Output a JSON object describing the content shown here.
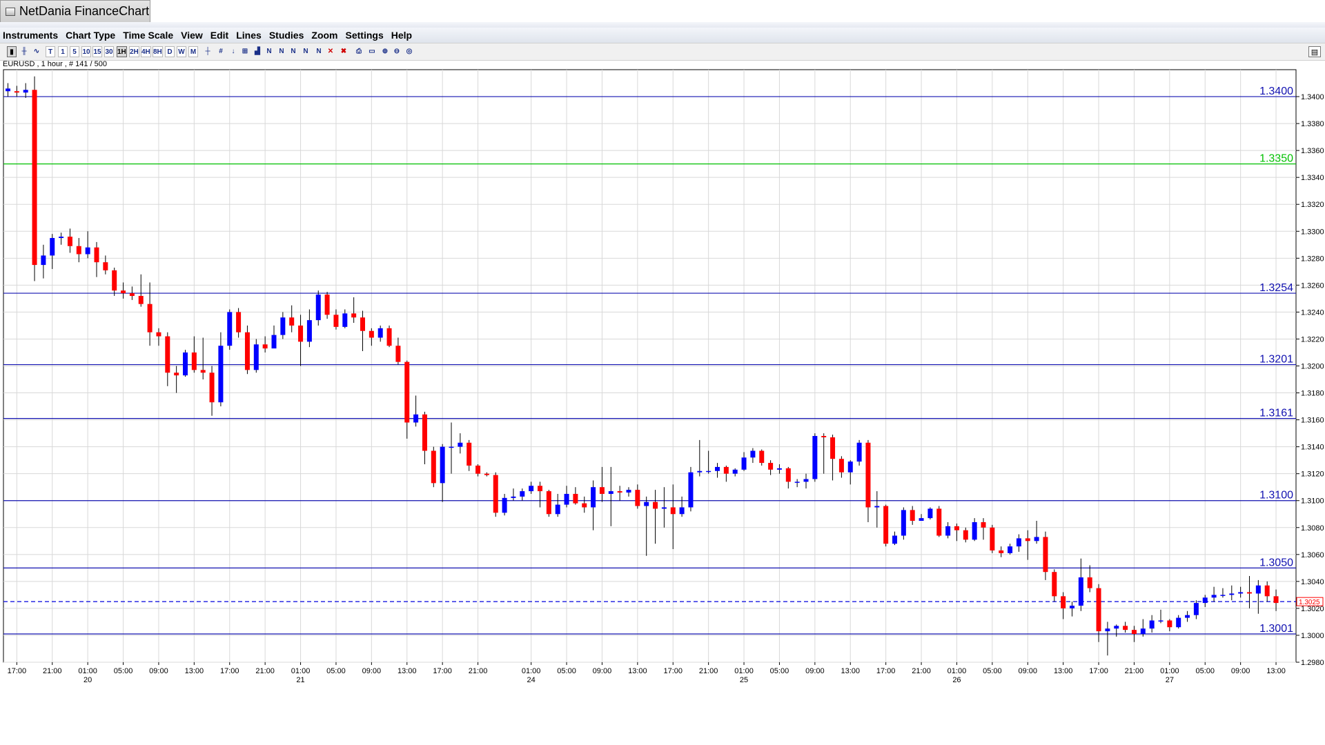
{
  "window": {
    "title": "NetDania FinanceChart"
  },
  "menu": [
    "Instruments",
    "Chart Type",
    "Time Scale",
    "View",
    "Edit",
    "Lines",
    "Studies",
    "Zoom",
    "Settings",
    "Help"
  ],
  "toolbar": {
    "buttons": [
      {
        "label": "",
        "icon": "candlestick-chart-icon",
        "active": true
      },
      {
        "label": "",
        "icon": "bar-chart-icon"
      },
      {
        "label": "",
        "icon": "line-chart-icon"
      },
      {
        "label": "T"
      },
      {
        "label": "1"
      },
      {
        "label": "5"
      },
      {
        "label": "10"
      },
      {
        "label": "15"
      },
      {
        "label": "30"
      },
      {
        "label": "1H",
        "active": true
      },
      {
        "label": "2H"
      },
      {
        "label": "4H"
      },
      {
        "label": "8H"
      },
      {
        "label": "D"
      },
      {
        "label": "W"
      },
      {
        "label": "M"
      },
      {
        "label": "",
        "icon": "crosshair-icon"
      },
      {
        "label": "",
        "icon": "grid-icon"
      },
      {
        "label": "",
        "icon": "price-cursor-icon"
      },
      {
        "label": "",
        "icon": "scale-icon"
      },
      {
        "label": "",
        "icon": "volume-icon"
      },
      {
        "label": "",
        "icon": "trendline-icon"
      },
      {
        "label": "",
        "icon": "parallel-lines-icon"
      },
      {
        "label": "",
        "icon": "fan-lines-icon"
      },
      {
        "label": "",
        "icon": "fibonacci-icon"
      },
      {
        "label": "",
        "icon": "edit-lines-icon"
      },
      {
        "label": "",
        "icon": "delete-line-icon"
      },
      {
        "label": "",
        "icon": "delete-all-lines-icon"
      },
      {
        "label": "",
        "icon": "print-icon"
      },
      {
        "label": "",
        "icon": "print-preview-icon"
      },
      {
        "label": "",
        "icon": "zoom-in-icon"
      },
      {
        "label": "",
        "icon": "zoom-out-icon"
      },
      {
        "label": "",
        "icon": "zoom-reset-icon"
      }
    ]
  },
  "chart_info": "EURUSD , 1 hour , # 141 / 500",
  "colors": {
    "up": "#0000ff",
    "down": "#ff0000",
    "wick": "#000000",
    "grid": "#d8d8d8",
    "level": "#1010b0",
    "green_level": "#00c000",
    "current": "#0000dd"
  },
  "chart_data": {
    "type": "candlestick",
    "symbol": "EURUSD",
    "timeframe": "1 hour",
    "ylim": [
      1.298,
      1.342
    ],
    "y_ticks": [
      "1.2980",
      "1.3000",
      "1.3020",
      "1.3040",
      "1.3060",
      "1.3080",
      "1.3100",
      "1.3120",
      "1.3140",
      "1.3160",
      "1.3180",
      "1.3200",
      "1.3220",
      "1.3240",
      "1.3260",
      "1.3280",
      "1.3300",
      "1.3320",
      "1.3340",
      "1.3360",
      "1.3380",
      "1.3400"
    ],
    "x_ticks": [
      {
        "slot": 1,
        "time": "17:00",
        "date": ""
      },
      {
        "slot": 5,
        "time": "21:00",
        "date": ""
      },
      {
        "slot": 9,
        "time": "01:00",
        "date": "20"
      },
      {
        "slot": 13,
        "time": "05:00",
        "date": ""
      },
      {
        "slot": 17,
        "time": "09:00",
        "date": ""
      },
      {
        "slot": 21,
        "time": "13:00",
        "date": ""
      },
      {
        "slot": 25,
        "time": "17:00",
        "date": ""
      },
      {
        "slot": 29,
        "time": "21:00",
        "date": ""
      },
      {
        "slot": 33,
        "time": "01:00",
        "date": "21"
      },
      {
        "slot": 37,
        "time": "05:00",
        "date": ""
      },
      {
        "slot": 41,
        "time": "09:00",
        "date": ""
      },
      {
        "slot": 45,
        "time": "13:00",
        "date": ""
      },
      {
        "slot": 49,
        "time": "17:00",
        "date": ""
      },
      {
        "slot": 53,
        "time": "21:00",
        "date": ""
      },
      {
        "slot": 59,
        "time": "01:00",
        "date": "24"
      },
      {
        "slot": 63,
        "time": "05:00",
        "date": ""
      },
      {
        "slot": 67,
        "time": "09:00",
        "date": ""
      },
      {
        "slot": 71,
        "time": "13:00",
        "date": ""
      },
      {
        "slot": 75,
        "time": "17:00",
        "date": ""
      },
      {
        "slot": 79,
        "time": "21:00",
        "date": ""
      },
      {
        "slot": 83,
        "time": "01:00",
        "date": "25"
      },
      {
        "slot": 87,
        "time": "05:00",
        "date": ""
      },
      {
        "slot": 91,
        "time": "09:00",
        "date": ""
      },
      {
        "slot": 95,
        "time": "13:00",
        "date": ""
      },
      {
        "slot": 99,
        "time": "17:00",
        "date": ""
      },
      {
        "slot": 103,
        "time": "21:00",
        "date": ""
      },
      {
        "slot": 107,
        "time": "01:00",
        "date": "26"
      },
      {
        "slot": 111,
        "time": "05:00",
        "date": ""
      },
      {
        "slot": 115,
        "time": "09:00",
        "date": ""
      },
      {
        "slot": 119,
        "time": "13:00",
        "date": ""
      },
      {
        "slot": 123,
        "time": "17:00",
        "date": ""
      },
      {
        "slot": 127,
        "time": "21:00",
        "date": ""
      },
      {
        "slot": 131,
        "time": "01:00",
        "date": "27"
      },
      {
        "slot": 135,
        "time": "05:00",
        "date": ""
      },
      {
        "slot": 139,
        "time": "09:00",
        "date": ""
      },
      {
        "slot": 143,
        "time": "13:00",
        "date": ""
      }
    ],
    "levels": [
      {
        "value": 1.34,
        "label": "1.3400",
        "color": "#1010b0"
      },
      {
        "value": 1.335,
        "label": "1.3350",
        "color": "#00c000"
      },
      {
        "value": 1.3254,
        "label": "1.3254",
        "color": "#1010b0"
      },
      {
        "value": 1.3201,
        "label": "1.3201",
        "color": "#1010b0"
      },
      {
        "value": 1.3161,
        "label": "1.3161",
        "color": "#1010b0"
      },
      {
        "value": 1.31,
        "label": "1.3100",
        "color": "#1010b0"
      },
      {
        "value": 1.305,
        "label": "1.3050",
        "color": "#1010b0"
      },
      {
        "value": 1.3001,
        "label": "1.3001",
        "color": "#1010b0"
      }
    ],
    "current_price": {
      "value": 1.3025,
      "label": "1.3025"
    },
    "candles": [
      [
        1.3404,
        1.3406,
        1.341,
        1.34
      ],
      [
        1.3404,
        1.3403,
        1.3408,
        1.34
      ],
      [
        1.3403,
        1.3405,
        1.341,
        1.3399
      ],
      [
        1.3405,
        1.3275,
        1.3415,
        1.3263
      ],
      [
        1.3275,
        1.3282,
        1.329,
        1.3265
      ],
      [
        1.3282,
        1.3295,
        1.3298,
        1.3272
      ],
      [
        1.3295,
        1.3296,
        1.3299,
        1.329
      ],
      [
        1.3296,
        1.3289,
        1.3302,
        1.3284
      ],
      [
        1.3289,
        1.3283,
        1.3295,
        1.3277
      ],
      [
        1.3283,
        1.3288,
        1.33,
        1.328
      ],
      [
        1.3288,
        1.3277,
        1.3292,
        1.3266
      ],
      [
        1.3277,
        1.3271,
        1.3282,
        1.3268
      ],
      [
        1.3271,
        1.3256,
        1.3273,
        1.3252
      ],
      [
        1.3256,
        1.3254,
        1.3262,
        1.325
      ],
      [
        1.3254,
        1.3252,
        1.3259,
        1.3249
      ],
      [
        1.3252,
        1.3246,
        1.3268,
        1.3244
      ],
      [
        1.3246,
        1.3225,
        1.3262,
        1.3215
      ],
      [
        1.3225,
        1.3222,
        1.3228,
        1.3215
      ],
      [
        1.3222,
        1.3195,
        1.3225,
        1.3185
      ],
      [
        1.3195,
        1.3193,
        1.32,
        1.318
      ],
      [
        1.3193,
        1.321,
        1.3212,
        1.3192
      ],
      [
        1.321,
        1.3197,
        1.3222,
        1.3195
      ],
      [
        1.3197,
        1.3195,
        1.3221,
        1.319
      ],
      [
        1.3195,
        1.3173,
        1.32,
        1.3163
      ],
      [
        1.3173,
        1.3215,
        1.3225,
        1.317
      ],
      [
        1.3215,
        1.324,
        1.3242,
        1.3212
      ],
      [
        1.324,
        1.3225,
        1.3243,
        1.3221
      ],
      [
        1.3225,
        1.3197,
        1.323,
        1.3194
      ],
      [
        1.3197,
        1.3216,
        1.322,
        1.3195
      ],
      [
        1.3216,
        1.3213,
        1.3222,
        1.321
      ],
      [
        1.3213,
        1.3223,
        1.323,
        1.3215
      ],
      [
        1.3223,
        1.3236,
        1.324,
        1.322
      ],
      [
        1.3236,
        1.323,
        1.3245,
        1.3225
      ],
      [
        1.323,
        1.3218,
        1.3238,
        1.32
      ],
      [
        1.3218,
        1.3234,
        1.3242,
        1.3214
      ],
      [
        1.3234,
        1.3253,
        1.3256,
        1.323
      ],
      [
        1.3253,
        1.3238,
        1.3255,
        1.3235
      ],
      [
        1.3238,
        1.3229,
        1.3242,
        1.3227
      ],
      [
        1.3229,
        1.3239,
        1.3242,
        1.3228
      ],
      [
        1.3239,
        1.3236,
        1.3251,
        1.3232
      ],
      [
        1.3236,
        1.3226,
        1.3241,
        1.3211
      ],
      [
        1.3226,
        1.3221,
        1.3228,
        1.3215
      ],
      [
        1.3221,
        1.3228,
        1.323,
        1.3218
      ],
      [
        1.3228,
        1.3215,
        1.323,
        1.3214
      ],
      [
        1.3215,
        1.3203,
        1.3221,
        1.3201
      ],
      [
        1.3203,
        1.3158,
        1.3204,
        1.3146
      ],
      [
        1.3158,
        1.3164,
        1.3178,
        1.3155
      ],
      [
        1.3164,
        1.3137,
        1.3166,
        1.3127
      ],
      [
        1.3137,
        1.3113,
        1.314,
        1.311
      ],
      [
        1.3113,
        1.314,
        1.3142,
        1.3099
      ],
      [
        1.314,
        1.314,
        1.3158,
        1.312
      ],
      [
        1.314,
        1.3143,
        1.315,
        1.3135
      ],
      [
        1.3143,
        1.3126,
        1.3145,
        1.3122
      ],
      [
        1.3126,
        1.312,
        1.3127,
        1.3118
      ],
      [
        1.312,
        1.3119,
        1.3121,
        1.3118
      ],
      [
        1.3119,
        1.3091,
        1.3121,
        1.3088
      ],
      [
        1.3091,
        1.3102,
        1.3105,
        1.3089
      ],
      [
        1.3102,
        1.3103,
        1.3109,
        1.31
      ],
      [
        1.3103,
        1.3107,
        1.3109,
        1.31
      ],
      [
        1.3107,
        1.3111,
        1.3114,
        1.3105
      ],
      [
        1.3111,
        1.3107,
        1.3114,
        1.3095
      ],
      [
        1.3107,
        1.309,
        1.3108,
        1.3088
      ],
      [
        1.309,
        1.3097,
        1.3105,
        1.3088
      ],
      [
        1.3097,
        1.3105,
        1.3111,
        1.3095
      ],
      [
        1.3105,
        1.3098,
        1.311,
        1.3097
      ],
      [
        1.3098,
        1.3095,
        1.3103,
        1.3091
      ],
      [
        1.3095,
        1.311,
        1.3115,
        1.3078
      ],
      [
        1.311,
        1.3105,
        1.3125,
        1.3099
      ],
      [
        1.3105,
        1.3107,
        1.3125,
        1.3081
      ],
      [
        1.3107,
        1.3106,
        1.3111,
        1.31
      ],
      [
        1.3106,
        1.3108,
        1.311,
        1.3103
      ],
      [
        1.3108,
        1.3096,
        1.3112,
        1.3094
      ],
      [
        1.3096,
        1.3099,
        1.3103,
        1.3059
      ],
      [
        1.3099,
        1.3094,
        1.3108,
        1.3068
      ],
      [
        1.3094,
        1.3095,
        1.311,
        1.308
      ],
      [
        1.3095,
        1.309,
        1.3112,
        1.3064
      ],
      [
        1.309,
        1.3095,
        1.3103,
        1.3088
      ],
      [
        1.3095,
        1.3121,
        1.3125,
        1.3092
      ],
      [
        1.3121,
        1.3122,
        1.3145,
        1.3118
      ],
      [
        1.3122,
        1.3122,
        1.3137,
        1.312
      ],
      [
        1.3122,
        1.3125,
        1.3128,
        1.3117
      ],
      [
        1.3125,
        1.312,
        1.3126,
        1.3114
      ],
      [
        1.312,
        1.3123,
        1.3124,
        1.3118
      ],
      [
        1.3123,
        1.3132,
        1.3136,
        1.3122
      ],
      [
        1.3132,
        1.3137,
        1.3139,
        1.3128
      ],
      [
        1.3137,
        1.3128,
        1.3138,
        1.3126
      ],
      [
        1.3128,
        1.3123,
        1.313,
        1.3119
      ],
      [
        1.3123,
        1.3124,
        1.3127,
        1.312
      ],
      [
        1.3124,
        1.3114,
        1.3125,
        1.3109
      ],
      [
        1.3114,
        1.3114,
        1.3116,
        1.311
      ],
      [
        1.3114,
        1.3116,
        1.312,
        1.3109
      ],
      [
        1.3116,
        1.3148,
        1.315,
        1.3114
      ],
      [
        1.3148,
        1.3147,
        1.315,
        1.312
      ],
      [
        1.3147,
        1.3131,
        1.3149,
        1.3115
      ],
      [
        1.3131,
        1.3121,
        1.3133,
        1.3117
      ],
      [
        1.3121,
        1.3129,
        1.313,
        1.3112
      ],
      [
        1.3129,
        1.3143,
        1.3145,
        1.3126
      ],
      [
        1.3143,
        1.3095,
        1.3145,
        1.3084
      ],
      [
        1.3095,
        1.3096,
        1.3107,
        1.308
      ],
      [
        1.3096,
        1.3068,
        1.3097,
        1.3066
      ],
      [
        1.3068,
        1.3074,
        1.3077,
        1.3067
      ],
      [
        1.3074,
        1.3093,
        1.3095,
        1.3071
      ],
      [
        1.3093,
        1.3085,
        1.3096,
        1.3082
      ],
      [
        1.3085,
        1.3087,
        1.309,
        1.3085
      ],
      [
        1.3087,
        1.3094,
        1.3095,
        1.3086
      ],
      [
        1.3094,
        1.3074,
        1.3096,
        1.3073
      ],
      [
        1.3074,
        1.3081,
        1.3084,
        1.3072
      ],
      [
        1.3081,
        1.3078,
        1.3083,
        1.307
      ],
      [
        1.3078,
        1.3071,
        1.308,
        1.3069
      ],
      [
        1.3071,
        1.3084,
        1.3087,
        1.307
      ],
      [
        1.3084,
        1.308,
        1.3087,
        1.3071
      ],
      [
        1.308,
        1.3063,
        1.3082,
        1.3061
      ],
      [
        1.3063,
        1.3061,
        1.3066,
        1.3058
      ],
      [
        1.3061,
        1.3066,
        1.3068,
        1.306
      ],
      [
        1.3066,
        1.3072,
        1.3075,
        1.3062
      ],
      [
        1.3072,
        1.307,
        1.3078,
        1.3056
      ],
      [
        1.307,
        1.3073,
        1.3085,
        1.3068
      ],
      [
        1.3073,
        1.3047,
        1.3077,
        1.3041
      ],
      [
        1.3047,
        1.3029,
        1.3049,
        1.3025
      ],
      [
        1.3029,
        1.302,
        1.3032,
        1.3012
      ],
      [
        1.302,
        1.3022,
        1.3025,
        1.3014
      ],
      [
        1.3022,
        1.3043,
        1.3057,
        1.3018
      ],
      [
        1.3043,
        1.3035,
        1.3052,
        1.3032
      ],
      [
        1.3035,
        1.3003,
        1.3038,
        1.2995
      ],
      [
        1.3003,
        1.3005,
        1.301,
        1.2985
      ],
      [
        1.3005,
        1.3007,
        1.3008,
        1.2999
      ],
      [
        1.3007,
        1.3004,
        1.301,
        1.3002
      ],
      [
        1.3004,
        1.3001,
        1.3007,
        1.2995
      ],
      [
        1.3001,
        1.3005,
        1.3012,
        1.2999
      ],
      [
        1.3005,
        1.3011,
        1.3015,
        1.3002
      ],
      [
        1.3011,
        1.3011,
        1.3019,
        1.3009
      ],
      [
        1.3011,
        1.3006,
        1.3012,
        1.3003
      ],
      [
        1.3006,
        1.3013,
        1.3015,
        1.3005
      ],
      [
        1.3013,
        1.3015,
        1.3018,
        1.301
      ],
      [
        1.3015,
        1.3024,
        1.3026,
        1.3012
      ],
      [
        1.3024,
        1.3028,
        1.303,
        1.3021
      ],
      [
        1.3028,
        1.303,
        1.3036,
        1.3025
      ],
      [
        1.303,
        1.303,
        1.3035,
        1.3028
      ],
      [
        1.303,
        1.3031,
        1.3037,
        1.3026
      ],
      [
        1.3031,
        1.3032,
        1.3036,
        1.3028
      ],
      [
        1.3032,
        1.3031,
        1.3044,
        1.302
      ],
      [
        1.3031,
        1.3037,
        1.3041,
        1.3016
      ],
      [
        1.3037,
        1.3029,
        1.304,
        1.3025
      ],
      [
        1.3029,
        1.3024,
        1.3034,
        1.3018
      ]
    ]
  }
}
